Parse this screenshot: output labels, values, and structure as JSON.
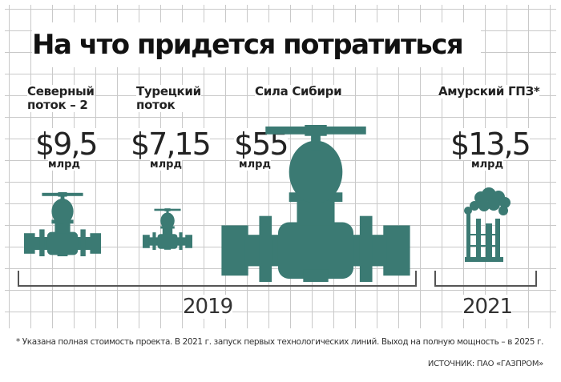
{
  "colors": {
    "accent": "#3b7a73",
    "grid": "#c9c9c9"
  },
  "chart_data": {
    "type": "bar",
    "title": "На что придется потратиться",
    "categories": [
      "Северный поток – 2",
      "Турецкий поток",
      "Сила Сибири",
      "Амурский ГПЗ*"
    ],
    "category_lines": [
      [
        "Северный",
        "поток – 2"
      ],
      [
        "Турецкий",
        "поток"
      ],
      [
        "Сила Сибири"
      ],
      [
        "Амурский ГПЗ*"
      ]
    ],
    "values": [
      9.5,
      7.15,
      55,
      13.5
    ],
    "value_labels": [
      "$9,5",
      "$7,15",
      "$55",
      "$13,5"
    ],
    "unit": "млрд",
    "groups": [
      {
        "label": "2019",
        "categories": [
          "Северный поток – 2",
          "Турецкий поток",
          "Сила Сибири"
        ]
      },
      {
        "label": "2021",
        "categories": [
          "Амурский ГПЗ*"
        ]
      }
    ],
    "icons": [
      "valve-icon",
      "valve-icon",
      "valve-icon",
      "factory-icon"
    ],
    "grid": true,
    "footnote": "* Указана полная стоимость проекта. В 2021 г. запуск первых технологических линий. Выход на полную мощность – в 2025 г.",
    "source": "ИСТОЧНИК: ПАО «ГАЗПРОМ»"
  }
}
